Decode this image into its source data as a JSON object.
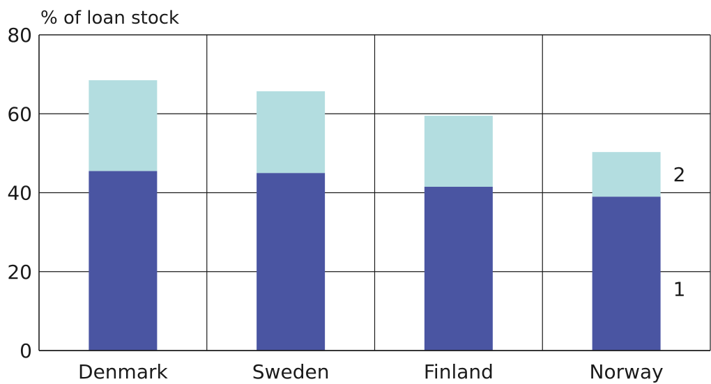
{
  "chart_data": {
    "type": "bar",
    "stacked": true,
    "ylabel": "% of loan stock",
    "ylim": [
      0,
      80
    ],
    "yticks": [
      "0",
      "20",
      "40",
      "60",
      "80"
    ],
    "categories": [
      "Denmark",
      "Sweden",
      "Finland",
      "Norway"
    ],
    "grid": true,
    "series": [
      {
        "name": "1",
        "color": "#4a55a2",
        "values": [
          45.5,
          45.0,
          41.5,
          39.0
        ]
      },
      {
        "name": "2",
        "color": "#b3dde0",
        "values": [
          23.0,
          20.7,
          18.0,
          11.3
        ]
      }
    ]
  }
}
